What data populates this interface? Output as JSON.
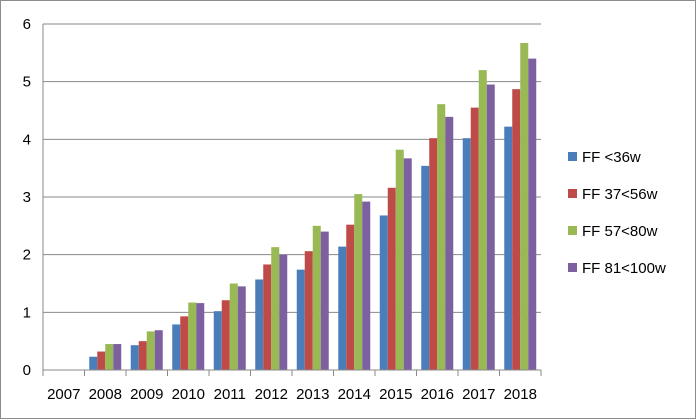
{
  "chart_data": {
    "type": "bar",
    "title": "",
    "xlabel": "",
    "ylabel": "",
    "ylim": [
      0,
      6
    ],
    "yticks": [
      0,
      1,
      2,
      3,
      4,
      5,
      6
    ],
    "grid": "horizontal",
    "legend_position": "right",
    "categories": [
      "2007",
      "2008",
      "2009",
      "2010",
      "2011",
      "2012",
      "2013",
      "2014",
      "2015",
      "2016",
      "2017",
      "2018"
    ],
    "series": [
      {
        "name": "FF <36w",
        "color": "#4a7ebb",
        "values": [
          0,
          0.23,
          0.43,
          0.79,
          1.02,
          1.57,
          1.74,
          2.14,
          2.68,
          3.54,
          4.02,
          4.22
        ]
      },
      {
        "name": "FF 37<56w",
        "color": "#be4b48",
        "values": [
          0,
          0.32,
          0.5,
          0.93,
          1.21,
          1.83,
          2.06,
          2.52,
          3.16,
          4.02,
          4.55,
          4.87
        ]
      },
      {
        "name": "FF 57<80w",
        "color": "#98b954",
        "values": [
          0,
          0.45,
          0.67,
          1.17,
          1.5,
          2.13,
          2.5,
          3.05,
          3.82,
          4.61,
          5.2,
          5.67
        ]
      },
      {
        "name": "FF 81<100w",
        "color": "#7d60a0",
        "values": [
          0,
          0.45,
          0.69,
          1.16,
          1.45,
          2.0,
          2.4,
          2.92,
          3.67,
          4.39,
          4.95,
          5.4
        ]
      }
    ]
  }
}
